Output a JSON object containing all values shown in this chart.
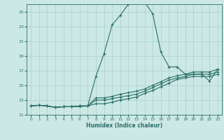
{
  "xlabel": "Humidex (Indice chaleur)",
  "ylabel": "",
  "xlim": [
    -0.5,
    23.5
  ],
  "ylim": [
    11,
    26
  ],
  "yticks": [
    11,
    13,
    15,
    17,
    19,
    21,
    23,
    25
  ],
  "xticks": [
    0,
    1,
    2,
    3,
    4,
    5,
    6,
    7,
    8,
    9,
    10,
    11,
    12,
    13,
    14,
    15,
    16,
    17,
    18,
    19,
    20,
    21,
    22,
    23
  ],
  "bg_color": "#cce8e5",
  "line_color": "#2a7068",
  "grid_color": "#aacfcc",
  "lines": [
    [
      12.2,
      12.3,
      12.2,
      12.0,
      12.1,
      12.1,
      12.1,
      12.2,
      16.2,
      19.3,
      23.2,
      24.5,
      26.0,
      26.3,
      26.3,
      24.7,
      19.5,
      17.5,
      17.5,
      16.5,
      16.5,
      16.5,
      15.6,
      17.2
    ],
    [
      12.2,
      12.3,
      12.2,
      12.0,
      12.1,
      12.1,
      12.2,
      12.2,
      13.3,
      13.3,
      13.5,
      13.8,
      14.0,
      14.2,
      14.5,
      15.0,
      15.5,
      16.0,
      16.3,
      16.5,
      16.8,
      16.8,
      16.8,
      17.2
    ],
    [
      12.2,
      12.3,
      12.2,
      12.0,
      12.1,
      12.1,
      12.2,
      12.2,
      13.0,
      13.0,
      13.2,
      13.4,
      13.6,
      13.8,
      14.2,
      14.7,
      15.2,
      15.7,
      16.0,
      16.2,
      16.5,
      16.5,
      16.5,
      16.8
    ],
    [
      12.2,
      12.3,
      12.2,
      12.0,
      12.1,
      12.1,
      12.2,
      12.2,
      12.5,
      12.5,
      12.7,
      13.0,
      13.2,
      13.4,
      13.9,
      14.3,
      14.8,
      15.3,
      15.8,
      16.0,
      16.2,
      16.2,
      16.2,
      16.5
    ]
  ]
}
